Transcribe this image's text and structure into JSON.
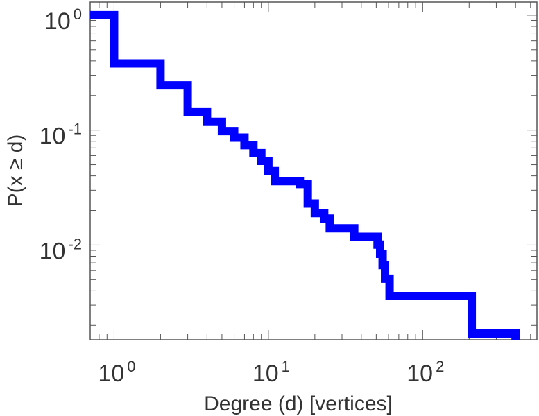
{
  "chart_data": {
    "type": "line",
    "step": true,
    "title": "",
    "xlabel": "Degree (d) [vertices]",
    "ylabel": "P(x ≥ d)",
    "x_scale": "log",
    "y_scale": "log",
    "xlim": [
      0.7,
      550
    ],
    "ylim": [
      0.0015,
      1.3
    ],
    "grid": false,
    "x_ticks": [
      {
        "base": "10",
        "exp": "0",
        "value": 1
      },
      {
        "base": "10",
        "exp": "1",
        "value": 10
      },
      {
        "base": "10",
        "exp": "2",
        "value": 100
      }
    ],
    "y_ticks": [
      {
        "base": "10",
        "exp": "0",
        "value": 1
      },
      {
        "base": "10",
        "exp": "-1",
        "value": 0.1
      },
      {
        "base": "10",
        "exp": "-2",
        "value": 0.01
      }
    ],
    "series": [
      {
        "color": "#0000ff",
        "points": [
          [
            1,
            1.0
          ],
          [
            2,
            0.38
          ],
          [
            3,
            0.245
          ],
          [
            4,
            0.143
          ],
          [
            5,
            0.118
          ],
          [
            6,
            0.098
          ],
          [
            7,
            0.086
          ],
          [
            8,
            0.074
          ],
          [
            9,
            0.063
          ],
          [
            10,
            0.054
          ],
          [
            11,
            0.044
          ],
          [
            16,
            0.036
          ],
          [
            18,
            0.034
          ],
          [
            20,
            0.023
          ],
          [
            23,
            0.019
          ],
          [
            25,
            0.017
          ],
          [
            36,
            0.014
          ],
          [
            51,
            0.0118
          ],
          [
            53,
            0.0101
          ],
          [
            55,
            0.0084
          ],
          [
            57,
            0.0067
          ],
          [
            61,
            0.0051
          ],
          [
            208,
            0.0036
          ],
          [
            400,
            0.0017
          ]
        ]
      }
    ]
  }
}
